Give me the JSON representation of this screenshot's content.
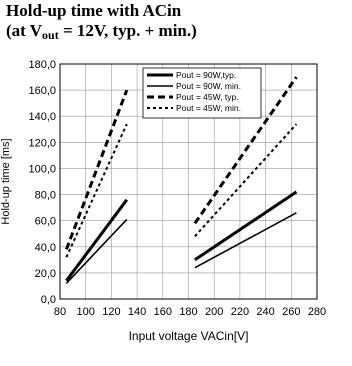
{
  "header": {
    "title_line1": "Hold-up time with ACin",
    "title_line2_prefix": "(at V",
    "title_line2_sub": "out",
    "title_line2_suffix": " = 12V, typ. + min.)"
  },
  "chart_data": {
    "type": "line",
    "title": "Hold-up time with ACin (at Vout = 12V, typ. + min.)",
    "xlabel": "Input voltage VACin[V]",
    "ylabel": "Hold-up time [ms]",
    "xlim": [
      80,
      280
    ],
    "ylim": [
      0,
      180
    ],
    "xticks": [
      80,
      100,
      120,
      140,
      160,
      180,
      200,
      220,
      240,
      260,
      280
    ],
    "yticks": [
      0,
      20,
      40,
      60,
      80,
      100,
      120,
      140,
      160,
      180
    ],
    "xtick_labels": [
      "80",
      "100",
      "120",
      "140",
      "160",
      "180",
      "200",
      "220",
      "240",
      "260",
      "280"
    ],
    "ytick_labels": [
      "0,0",
      "20,0",
      "40,0",
      "60,0",
      "80,0",
      "100,0",
      "120,0",
      "140,0",
      "160,0",
      "180,0"
    ],
    "grid": true,
    "legend_position": "top-right",
    "series": [
      {
        "name": "Pout = 90W,typ.",
        "style": "solid-thick",
        "segments": [
          [
            [
              85,
              14
            ],
            [
              132,
              76
            ]
          ],
          [
            [
              185,
              30
            ],
            [
              264,
              82
            ]
          ]
        ]
      },
      {
        "name": "Pout = 90W, min.",
        "style": "solid-thin",
        "segments": [
          [
            [
              85,
              12
            ],
            [
              132,
              61
            ]
          ],
          [
            [
              185,
              24
            ],
            [
              264,
              66
            ]
          ]
        ]
      },
      {
        "name": "Pout = 45W, typ.",
        "style": "dashed-thick",
        "segments": [
          [
            [
              85,
              38
            ],
            [
              132,
              160
            ]
          ],
          [
            [
              185,
              58
            ],
            [
              264,
              170
            ]
          ]
        ]
      },
      {
        "name": "Pout = 45W, min.",
        "style": "dotted",
        "segments": [
          [
            [
              85,
              32
            ],
            [
              132,
              134
            ]
          ],
          [
            [
              185,
              48
            ],
            [
              264,
              134
            ]
          ]
        ]
      }
    ]
  }
}
